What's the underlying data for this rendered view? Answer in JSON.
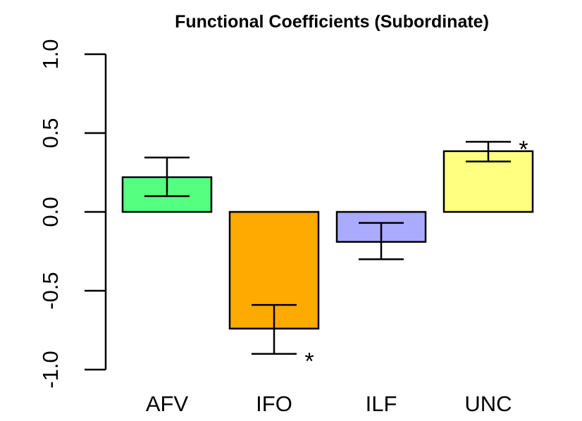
{
  "chart_data": {
    "type": "bar",
    "title": "Functional Coefficients (Subordinate)",
    "xlabel": "",
    "ylabel": "",
    "ylim": [
      -1.0,
      1.0
    ],
    "yticks": [
      -1.0,
      -0.5,
      0.0,
      0.5,
      1.0
    ],
    "ytick_labels": [
      "-1.0",
      "-0.5",
      "0.0",
      "0.5",
      "1.0"
    ],
    "categories": [
      "AFV",
      "IFO",
      "ILF",
      "UNC"
    ],
    "values": [
      0.22,
      -0.74,
      -0.19,
      0.385
    ],
    "error_low": [
      0.1,
      -0.9,
      -0.3,
      0.32
    ],
    "error_high": [
      0.345,
      -0.59,
      -0.07,
      0.445
    ],
    "significance": [
      "",
      "*",
      "",
      "*"
    ],
    "colors": [
      "#55ff7f",
      "#ffaa00",
      "#aaaaff",
      "#ffff80"
    ],
    "grid": false,
    "legend": "none"
  }
}
